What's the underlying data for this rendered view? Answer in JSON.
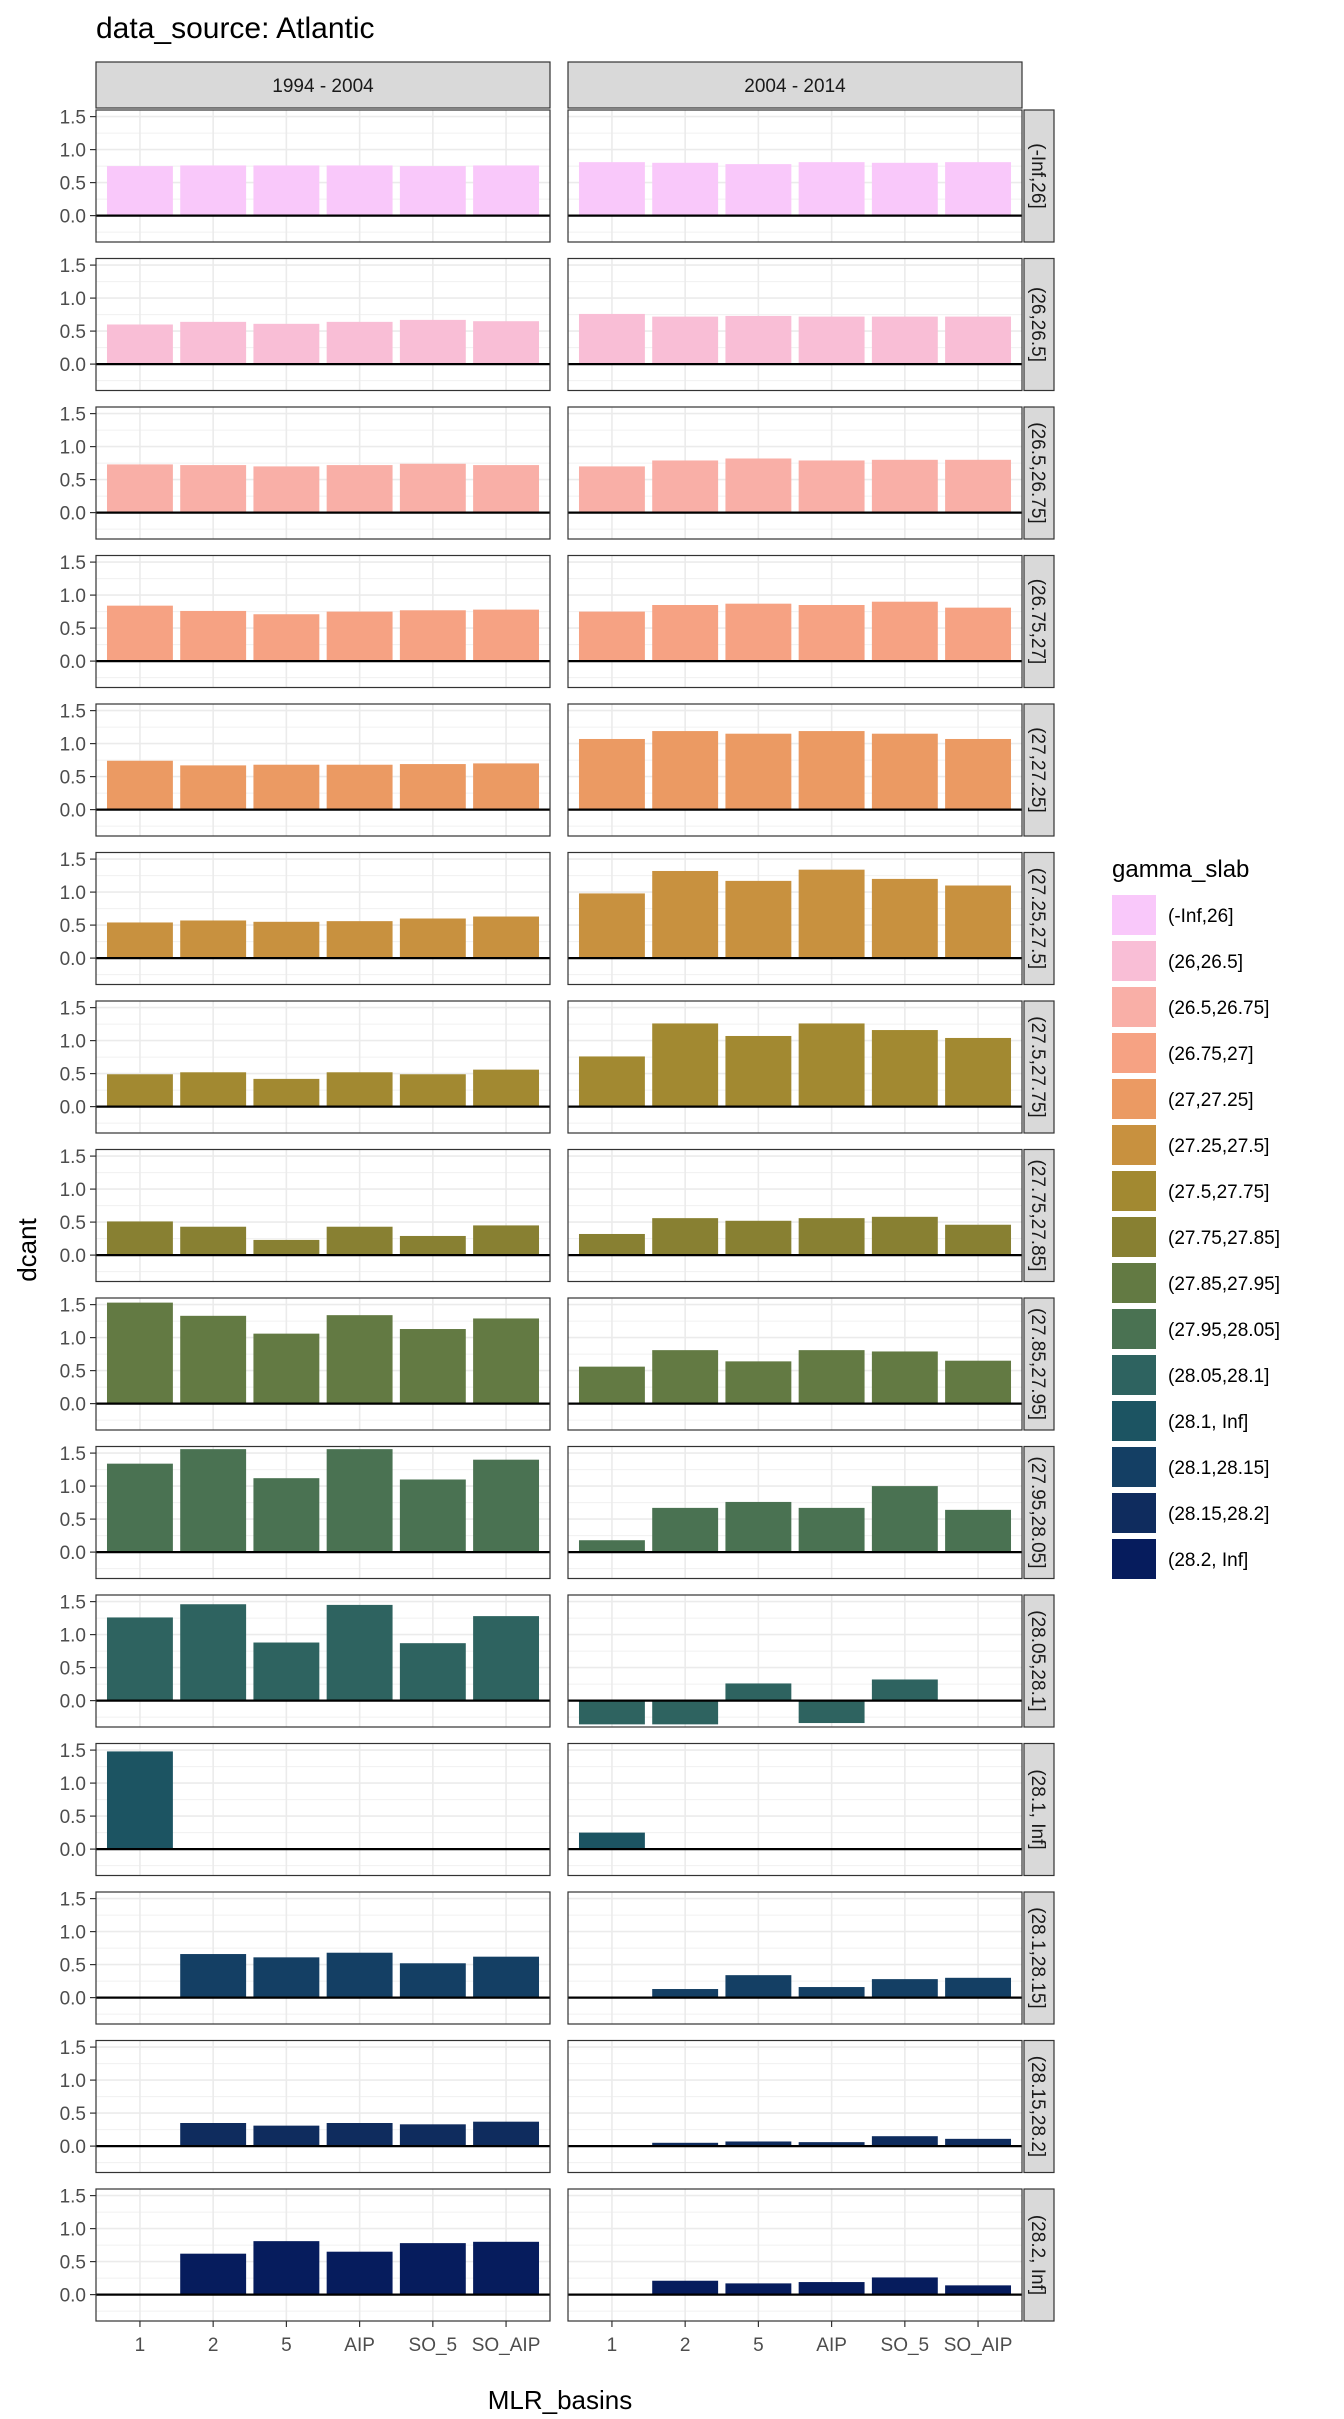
{
  "chart_data": {
    "type": "bar",
    "title": "data_source: Atlantic",
    "xlabel": "MLR_basins",
    "ylabel": "dcant",
    "facet_columns": [
      "1994 - 2004",
      "2004 - 2014"
    ],
    "categories": [
      "1",
      "2",
      "5",
      "AIP",
      "SO_5",
      "SO_AIP"
    ],
    "ylim": [
      -0.4,
      1.6
    ],
    "y_ticks": [
      "0.0",
      "0.5",
      "1.0",
      "1.5"
    ],
    "legend": {
      "title": "gamma_slab",
      "position": "right"
    },
    "grid": true,
    "legend_items": [
      {
        "label": "(-Inf,26]",
        "color": "#F9C8FA"
      },
      {
        "label": "(26,26.5]",
        "color": "#F9BED6"
      },
      {
        "label": "(26.5,26.75]",
        "color": "#F9AFA7"
      },
      {
        "label": "(26.75,27]",
        "color": "#F6A283"
      },
      {
        "label": "(27,27.25]",
        "color": "#EB9A63"
      },
      {
        "label": "(27.25,27.5]",
        "color": "#C8913F"
      },
      {
        "label": "(27.5,27.75]",
        "color": "#A28931"
      },
      {
        "label": "(27.75,27.85]",
        "color": "#888032"
      },
      {
        "label": "(27.85,27.95]",
        "color": "#637A43"
      },
      {
        "label": "(27.95,28.05]",
        "color": "#4A7252"
      },
      {
        "label": "(28.05,28.1]",
        "color": "#2E6360"
      },
      {
        "label": "(28.1, Inf]",
        "color": "#1C5462"
      },
      {
        "label": "(28.1,28.15]",
        "color": "#143F64"
      },
      {
        "label": "(28.15,28.2]",
        "color": "#0F2C5E"
      },
      {
        "label": "(28.2, Inf]",
        "color": "#061C5D"
      }
    ],
    "rows": [
      {
        "label": "(-Inf,26]",
        "color": "#F9C8FA",
        "series": [
          {
            "period": "1994 - 2004",
            "values": [
              0.75,
              0.76,
              0.76,
              0.76,
              0.75,
              0.76
            ]
          },
          {
            "period": "2004 - 2014",
            "values": [
              0.81,
              0.8,
              0.78,
              0.81,
              0.8,
              0.81
            ]
          }
        ]
      },
      {
        "label": "(26,26.5]",
        "color": "#F9BED6",
        "series": [
          {
            "period": "1994 - 2004",
            "values": [
              0.6,
              0.64,
              0.61,
              0.64,
              0.67,
              0.65
            ]
          },
          {
            "period": "2004 - 2014",
            "values": [
              0.76,
              0.72,
              0.73,
              0.72,
              0.72,
              0.72
            ]
          }
        ]
      },
      {
        "label": "(26.5,26.75]",
        "color": "#F9AFA7",
        "series": [
          {
            "period": "1994 - 2004",
            "values": [
              0.73,
              0.72,
              0.7,
              0.72,
              0.74,
              0.72
            ]
          },
          {
            "period": "2004 - 2014",
            "values": [
              0.7,
              0.79,
              0.82,
              0.79,
              0.8,
              0.8
            ]
          }
        ]
      },
      {
        "label": "(26.75,27]",
        "color": "#F6A283",
        "series": [
          {
            "period": "1994 - 2004",
            "values": [
              0.84,
              0.76,
              0.71,
              0.75,
              0.77,
              0.78
            ]
          },
          {
            "period": "2004 - 2014",
            "values": [
              0.75,
              0.85,
              0.87,
              0.85,
              0.9,
              0.81
            ]
          }
        ]
      },
      {
        "label": "(27,27.25]",
        "color": "#EB9A63",
        "series": [
          {
            "period": "1994 - 2004",
            "values": [
              0.74,
              0.67,
              0.68,
              0.68,
              0.69,
              0.7
            ]
          },
          {
            "period": "2004 - 2014",
            "values": [
              1.07,
              1.19,
              1.15,
              1.19,
              1.15,
              1.07
            ]
          }
        ]
      },
      {
        "label": "(27.25,27.5]",
        "color": "#C8913F",
        "series": [
          {
            "period": "1994 - 2004",
            "values": [
              0.54,
              0.57,
              0.55,
              0.56,
              0.6,
              0.63
            ]
          },
          {
            "period": "2004 - 2014",
            "values": [
              0.98,
              1.32,
              1.17,
              1.34,
              1.2,
              1.1
            ]
          }
        ]
      },
      {
        "label": "(27.5,27.75]",
        "color": "#A28931",
        "series": [
          {
            "period": "1994 - 2004",
            "values": [
              0.49,
              0.52,
              0.42,
              0.52,
              0.49,
              0.56
            ]
          },
          {
            "period": "2004 - 2014",
            "values": [
              0.76,
              1.26,
              1.07,
              1.26,
              1.16,
              1.04
            ]
          }
        ]
      },
      {
        "label": "(27.75,27.85]",
        "color": "#888032",
        "series": [
          {
            "period": "1994 - 2004",
            "values": [
              0.51,
              0.43,
              0.23,
              0.43,
              0.29,
              0.45
            ]
          },
          {
            "period": "2004 - 2014",
            "values": [
              0.32,
              0.56,
              0.52,
              0.56,
              0.58,
              0.46
            ]
          }
        ]
      },
      {
        "label": "(27.85,27.95]",
        "color": "#637A43",
        "series": [
          {
            "period": "1994 - 2004",
            "values": [
              1.53,
              1.33,
              1.06,
              1.34,
              1.13,
              1.29
            ]
          },
          {
            "period": "2004 - 2014",
            "values": [
              0.56,
              0.81,
              0.64,
              0.81,
              0.79,
              0.65
            ]
          }
        ]
      },
      {
        "label": "(27.95,28.05]",
        "color": "#4A7252",
        "series": [
          {
            "period": "1994 - 2004",
            "values": [
              1.34,
              1.56,
              1.12,
              1.56,
              1.1,
              1.4
            ]
          },
          {
            "period": "2004 - 2014",
            "values": [
              0.18,
              0.67,
              0.76,
              0.67,
              1.0,
              0.64
            ]
          }
        ]
      },
      {
        "label": "(28.05,28.1]",
        "color": "#2E6360",
        "series": [
          {
            "period": "1994 - 2004",
            "values": [
              1.26,
              1.46,
              0.88,
              1.45,
              0.87,
              1.28
            ]
          },
          {
            "period": "2004 - 2014",
            "values": [
              -0.36,
              -0.36,
              0.26,
              -0.34,
              0.32,
              0.0
            ]
          }
        ]
      },
      {
        "label": "(28.1, Inf]",
        "color": "#1C5462",
        "series": [
          {
            "period": "1994 - 2004",
            "values": [
              1.48,
              null,
              null,
              null,
              null,
              null
            ]
          },
          {
            "period": "2004 - 2014",
            "values": [
              0.25,
              null,
              null,
              null,
              null,
              null
            ]
          }
        ]
      },
      {
        "label": "(28.1,28.15]",
        "color": "#143F64",
        "series": [
          {
            "period": "1994 - 2004",
            "values": [
              null,
              0.66,
              0.61,
              0.68,
              0.52,
              0.62
            ]
          },
          {
            "period": "2004 - 2014",
            "values": [
              null,
              0.13,
              0.34,
              0.16,
              0.28,
              0.3
            ]
          }
        ]
      },
      {
        "label": "(28.15,28.2]",
        "color": "#0F2C5E",
        "series": [
          {
            "period": "1994 - 2004",
            "values": [
              null,
              0.35,
              0.31,
              0.35,
              0.33,
              0.37
            ]
          },
          {
            "period": "2004 - 2014",
            "values": [
              null,
              0.05,
              0.07,
              0.06,
              0.15,
              0.11
            ]
          }
        ]
      },
      {
        "label": "(28.2, Inf]",
        "color": "#061C5D",
        "series": [
          {
            "period": "1994 - 2004",
            "values": [
              null,
              0.62,
              0.81,
              0.65,
              0.78,
              0.8
            ]
          },
          {
            "period": "2004 - 2014",
            "values": [
              null,
              0.21,
              0.17,
              0.19,
              0.26,
              0.14
            ]
          }
        ]
      }
    ]
  }
}
